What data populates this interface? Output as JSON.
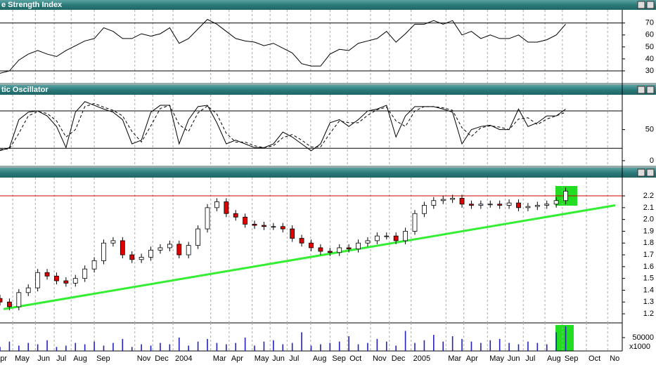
{
  "chart_data": [
    {
      "type": "line",
      "title": "e Strength Index",
      "x": [
        0,
        2,
        4,
        6,
        8,
        10,
        12,
        14,
        16,
        18,
        20,
        22,
        24,
        26,
        28,
        30,
        32,
        34,
        36,
        38,
        40,
        42,
        44,
        46,
        48,
        50,
        52,
        54,
        56,
        58,
        60,
        62,
        64,
        66,
        68,
        70,
        72,
        74,
        76,
        78,
        80,
        82,
        84,
        86,
        88,
        90,
        92,
        94,
        96,
        98,
        100,
        102,
        104,
        106,
        108,
        110,
        112,
        114,
        116,
        118,
        120
      ],
      "series": [
        {
          "color": "#000000",
          "values": [
            28,
            30,
            39,
            44,
            47,
            44,
            42,
            47,
            51,
            55,
            57,
            66,
            63,
            57,
            57,
            61,
            59,
            61,
            66,
            53,
            57,
            65,
            73,
            69,
            63,
            57,
            55,
            54,
            51,
            53,
            49,
            45,
            36,
            34,
            34,
            44,
            48,
            47,
            53,
            55,
            57,
            63,
            54,
            61,
            69,
            69,
            72,
            69,
            72,
            60,
            63,
            57,
            60,
            57,
            57,
            60,
            54,
            54,
            56,
            60,
            69
          ]
        }
      ],
      "levels": [
        30,
        70
      ],
      "ylim": [
        20,
        81
      ],
      "yticks": [
        30,
        40,
        50,
        60,
        70
      ],
      "xlim": [
        0,
        132
      ]
    },
    {
      "type": "line",
      "title": "tic Oscillator",
      "x": [
        0,
        2,
        4,
        6,
        8,
        10,
        12,
        14,
        16,
        18,
        20,
        22,
        24,
        26,
        28,
        30,
        32,
        34,
        36,
        38,
        40,
        42,
        44,
        46,
        48,
        50,
        52,
        54,
        56,
        58,
        60,
        62,
        64,
        66,
        68,
        70,
        72,
        74,
        76,
        78,
        80,
        82,
        84,
        86,
        88,
        90,
        92,
        94,
        96,
        98,
        100,
        102,
        104,
        106,
        108,
        110,
        112,
        114,
        116,
        118,
        120
      ],
      "series": [
        {
          "color": "#000000",
          "dash": false,
          "values": [
            16,
            21,
            66,
            78,
            80,
            72,
            55,
            21,
            78,
            95,
            89,
            83,
            78,
            66,
            27,
            33,
            78,
            89,
            89,
            27,
            66,
            87,
            89,
            61,
            27,
            33,
            27,
            21,
            21,
            27,
            46,
            38,
            27,
            16,
            27,
            61,
            66,
            55,
            66,
            80,
            83,
            89,
            38,
            72,
            87,
            87,
            87,
            83,
            78,
            27,
            50,
            55,
            57,
            50,
            50,
            83,
            55,
            61,
            72,
            72,
            83
          ]
        },
        {
          "color": "#000000",
          "dash": true,
          "values": [
            18,
            19,
            44,
            72,
            79,
            76,
            64,
            38,
            50,
            87,
            92,
            86,
            81,
            72,
            47,
            30,
            56,
            84,
            89,
            58,
            47,
            77,
            88,
            75,
            44,
            30,
            30,
            24,
            21,
            24,
            37,
            42,
            33,
            22,
            22,
            44,
            64,
            61,
            61,
            73,
            82,
            86,
            64,
            55,
            80,
            87,
            87,
            85,
            81,
            53,
            39,
            53,
            56,
            54,
            50,
            67,
            69,
            58,
            67,
            72,
            78
          ]
        }
      ],
      "levels": [
        20,
        80
      ],
      "ylim": [
        -8,
        106
      ],
      "yticks": [
        0,
        50
      ],
      "xlim": [
        0,
        132
      ]
    },
    {
      "type": "candlestick",
      "x": [
        0,
        2,
        4,
        6,
        8,
        10,
        12,
        14,
        16,
        18,
        20,
        22,
        24,
        26,
        28,
        30,
        32,
        34,
        36,
        38,
        40,
        42,
        44,
        46,
        48,
        50,
        52,
        54,
        56,
        58,
        60,
        62,
        64,
        66,
        68,
        70,
        72,
        74,
        76,
        78,
        80,
        82,
        84,
        86,
        88,
        90,
        92,
        94,
        96,
        98,
        100,
        102,
        104,
        106,
        108,
        110,
        112,
        114,
        116,
        118,
        120
      ],
      "open": [
        1.33,
        1.3,
        1.26,
        1.38,
        1.42,
        1.55,
        1.52,
        1.48,
        1.46,
        1.5,
        1.58,
        1.65,
        1.8,
        1.82,
        1.7,
        1.66,
        1.68,
        1.74,
        1.76,
        1.79,
        1.7,
        1.78,
        1.92,
        2.1,
        2.15,
        2.05,
        2.02,
        1.96,
        1.95,
        1.94,
        1.94,
        1.92,
        1.84,
        1.8,
        1.76,
        1.73,
        1.72,
        1.76,
        1.75,
        1.8,
        1.82,
        1.86,
        1.86,
        1.82,
        1.9,
        2.05,
        2.12,
        2.16,
        2.17,
        2.18,
        2.13,
        2.12,
        2.13,
        2.13,
        2.12,
        2.14,
        2.1,
        2.11,
        2.12,
        2.13,
        2.16
      ],
      "high": [
        1.36,
        1.33,
        1.41,
        1.45,
        1.58,
        1.58,
        1.55,
        1.51,
        1.53,
        1.61,
        1.68,
        1.83,
        1.85,
        1.85,
        1.73,
        1.71,
        1.77,
        1.79,
        1.82,
        1.82,
        1.81,
        1.95,
        2.13,
        2.18,
        2.18,
        2.08,
        2.05,
        1.99,
        1.98,
        1.97,
        1.97,
        1.95,
        1.87,
        1.83,
        1.79,
        1.76,
        1.79,
        1.79,
        1.83,
        1.85,
        1.89,
        1.89,
        1.89,
        1.93,
        2.08,
        2.15,
        2.19,
        2.2,
        2.21,
        2.21,
        2.16,
        2.16,
        2.16,
        2.16,
        2.17,
        2.17,
        2.14,
        2.15,
        2.16,
        2.19,
        2.27
      ],
      "low": [
        1.27,
        1.23,
        1.23,
        1.35,
        1.39,
        1.49,
        1.45,
        1.43,
        1.43,
        1.47,
        1.55,
        1.62,
        1.77,
        1.67,
        1.63,
        1.63,
        1.65,
        1.71,
        1.73,
        1.67,
        1.67,
        1.75,
        1.89,
        2.07,
        2.02,
        1.99,
        1.93,
        1.92,
        1.91,
        1.91,
        1.89,
        1.81,
        1.77,
        1.73,
        1.7,
        1.69,
        1.69,
        1.72,
        1.72,
        1.77,
        1.79,
        1.83,
        1.79,
        1.79,
        1.87,
        2.02,
        2.09,
        2.13,
        2.14,
        2.1,
        2.09,
        2.09,
        2.1,
        2.09,
        2.09,
        2.07,
        2.07,
        2.08,
        2.09,
        2.1,
        2.13
      ],
      "close": [
        1.3,
        1.26,
        1.38,
        1.42,
        1.55,
        1.52,
        1.48,
        1.46,
        1.5,
        1.58,
        1.65,
        1.8,
        1.82,
        1.7,
        1.66,
        1.68,
        1.74,
        1.76,
        1.79,
        1.7,
        1.78,
        1.92,
        2.1,
        2.15,
        2.05,
        2.02,
        1.96,
        1.95,
        1.94,
        1.94,
        1.92,
        1.84,
        1.8,
        1.76,
        1.73,
        1.72,
        1.76,
        1.75,
        1.8,
        1.82,
        1.86,
        1.86,
        1.82,
        1.9,
        2.05,
        2.12,
        2.16,
        2.17,
        2.18,
        2.13,
        2.12,
        2.13,
        2.13,
        2.12,
        2.14,
        2.1,
        2.11,
        2.12,
        2.13,
        2.16,
        2.24
      ],
      "up_color": "#ffffff",
      "down_color": "#e00000",
      "resistance": 2.2,
      "resistance_color": "#cc0000",
      "trendline": {
        "x": [
          0.75,
          130.5
        ],
        "values": [
          1.24,
          2.12
        ],
        "color": "#33ee33"
      },
      "ylim": [
        1.123,
        2.355
      ],
      "yticks": [
        1.2,
        1.3,
        1.4,
        1.5,
        1.6,
        1.7,
        1.8,
        1.9,
        {
          "value": 2,
          "label": "2.0"
        },
        2.1,
        2.2
      ],
      "xlim": [
        0,
        132
      ]
    },
    {
      "type": "bar",
      "unit_label": "x1000",
      "color": "#2222bb",
      "x": [
        0,
        2,
        4,
        6,
        8,
        10,
        12,
        14,
        16,
        18,
        20,
        22,
        24,
        26,
        28,
        30,
        32,
        34,
        36,
        38,
        40,
        42,
        44,
        46,
        48,
        50,
        52,
        54,
        56,
        58,
        60,
        62,
        64,
        66,
        68,
        70,
        72,
        74,
        76,
        78,
        80,
        82,
        84,
        86,
        88,
        90,
        92,
        94,
        96,
        98,
        100,
        102,
        104,
        106,
        108,
        110,
        112,
        114,
        116,
        118,
        120
      ],
      "values": [
        15000,
        35000,
        20000,
        30000,
        25000,
        40000,
        15000,
        20000,
        30000,
        25000,
        35000,
        20000,
        30000,
        45000,
        15000,
        25000,
        20000,
        30000,
        25000,
        50000,
        20000,
        35000,
        45000,
        30000,
        25000,
        30000,
        50000,
        20000,
        35000,
        40000,
        25000,
        30000,
        70000,
        20000,
        25000,
        30000,
        35000,
        55000,
        25000,
        30000,
        45000,
        35000,
        20000,
        75000,
        30000,
        40000,
        60000,
        35000,
        55000,
        45000,
        35000,
        30000,
        40000,
        45000,
        30000,
        25000,
        35000,
        30000,
        25000,
        70000,
        92000
      ],
      "ylim": [
        0,
        105000
      ],
      "yticks": [
        50000
      ],
      "xlim": [
        0,
        132
      ],
      "xticks": [
        {
          "value": -1.5,
          "label": "Apr"
        },
        {
          "value": 2.7,
          "label": "May"
        },
        {
          "value": 7.5,
          "label": "Jun"
        },
        {
          "value": 11.5,
          "label": "Jul"
        },
        {
          "value": 15.1,
          "label": "Aug"
        },
        {
          "value": 20,
          "label": "Sep"
        },
        {
          "value": 28.6,
          "label": "Nov"
        },
        {
          "value": 32.4,
          "label": "Dec"
        },
        {
          "value": 36.7,
          "label": "2004"
        },
        {
          "value": 44.7,
          "label": "Mar"
        },
        {
          "value": 48.6,
          "label": "Apr"
        },
        {
          "value": 53.5,
          "label": "May"
        },
        {
          "value": 57.3,
          "label": "Jun"
        },
        {
          "value": 60.9,
          "label": "Jul"
        },
        {
          "value": 65.9,
          "label": "Aug"
        },
        {
          "value": 70,
          "label": "Sep"
        },
        {
          "value": 73.7,
          "label": "Oct"
        },
        {
          "value": 78.6,
          "label": "Nov"
        },
        {
          "value": 82.6,
          "label": "Dec"
        },
        {
          "value": 87.2,
          "label": "2005"
        },
        {
          "value": 94.6,
          "label": "Mar"
        },
        {
          "value": 98.4,
          "label": "Apr"
        },
        {
          "value": 103.4,
          "label": "May"
        },
        {
          "value": 107.2,
          "label": "Jun"
        },
        {
          "value": 111,
          "label": "Jul"
        },
        {
          "value": 115.6,
          "label": "Aug"
        },
        {
          "value": 119.3,
          "label": "Sep"
        },
        {
          "value": 124.4,
          "label": "Oct"
        },
        {
          "value": 128.9,
          "label": "No"
        }
      ]
    }
  ]
}
